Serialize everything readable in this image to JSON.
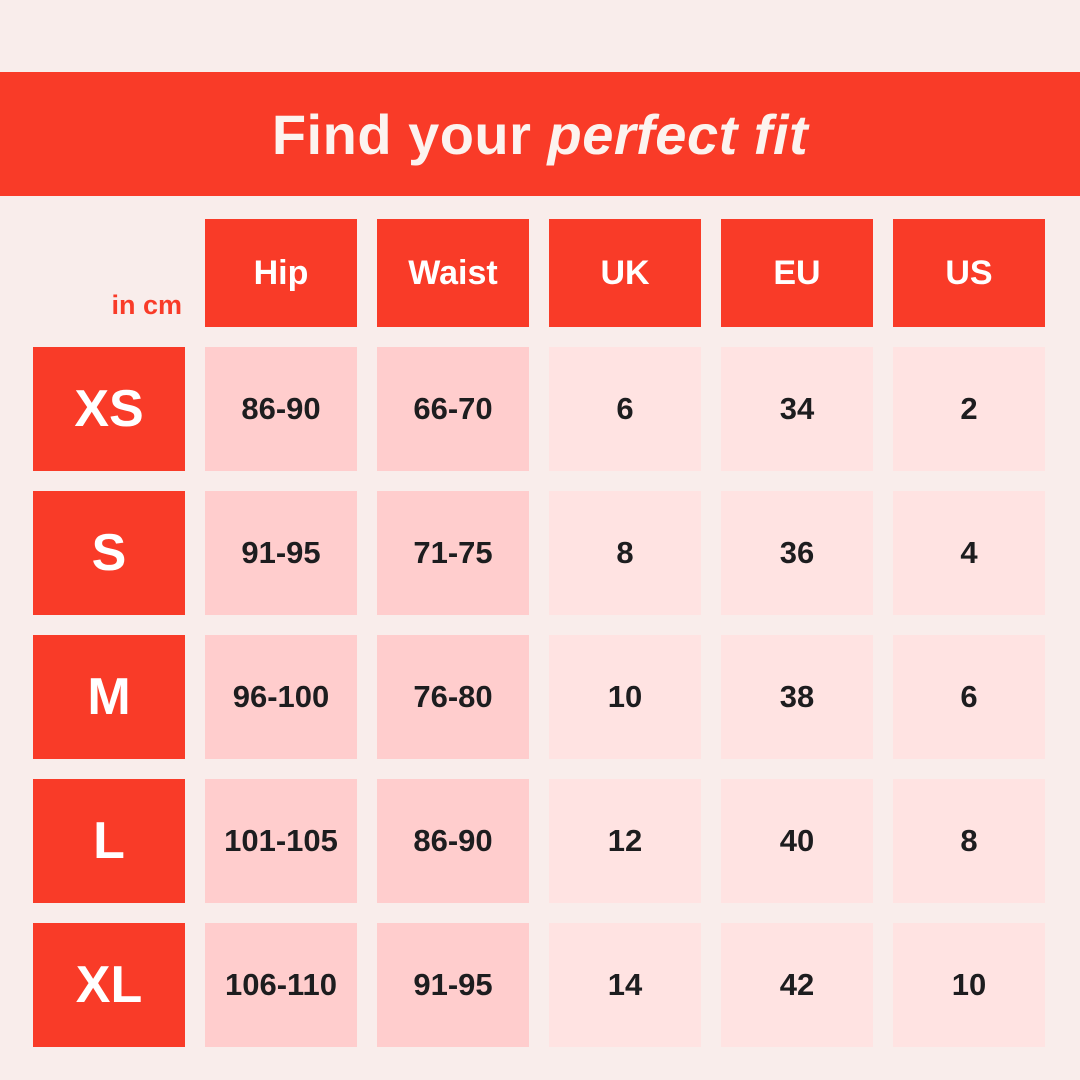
{
  "theme": {
    "red": "#F93B28",
    "pink_dark": "#FFCDCD",
    "pink_light": "#FFE3E2",
    "background": "#F9EDEB",
    "text_dark": "#1D1D1F",
    "text_light": "#FCF3EF"
  },
  "title": {
    "prefix": "Find your ",
    "italic": "perfect fit"
  },
  "table": {
    "unit_label": "in cm",
    "columns": [
      "Hip",
      "Waist",
      "UK",
      "EU",
      "US"
    ],
    "rows": [
      {
        "size": "XS",
        "hip": "86-90",
        "waist": "66-70",
        "uk": "6",
        "eu": "34",
        "us": "2"
      },
      {
        "size": "S",
        "hip": "91-95",
        "waist": "71-75",
        "uk": "8",
        "eu": "36",
        "us": "4"
      },
      {
        "size": "M",
        "hip": "96-100",
        "waist": "76-80",
        "uk": "10",
        "eu": "38",
        "us": "6"
      },
      {
        "size": "L",
        "hip": "101-105",
        "waist": "86-90",
        "uk": "12",
        "eu": "40",
        "us": "8"
      },
      {
        "size": "XL",
        "hip": "106-110",
        "waist": "91-95",
        "uk": "14",
        "eu": "42",
        "us": "10"
      }
    ]
  }
}
